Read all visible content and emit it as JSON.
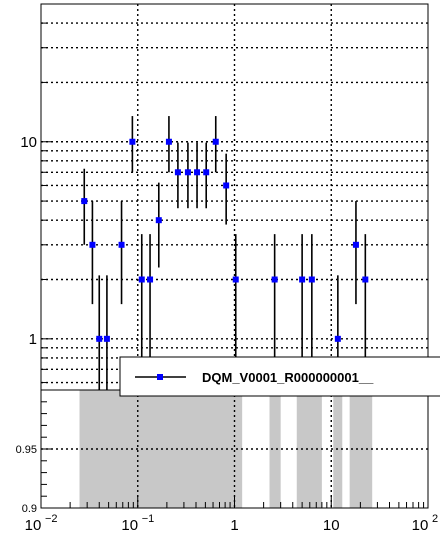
{
  "chart_data": [
    {
      "type": "scatter",
      "title": "",
      "xlabel": "",
      "ylabel": "",
      "x_scale": "log",
      "y_scale": "log",
      "xlim": [
        0.01,
        100
      ],
      "ylim": [
        0.55,
        50
      ],
      "grid": true,
      "x_ticks": [
        {
          "value": 0.01,
          "base": "10",
          "exp": "−2"
        },
        {
          "value": 0.1,
          "base": "10",
          "exp": "−1"
        },
        {
          "value": 1,
          "label": "1"
        },
        {
          "value": 10,
          "label": "10"
        },
        {
          "value": 100,
          "base": "10",
          "exp": "2"
        }
      ],
      "y_ticks": [
        {
          "value": 1,
          "label": "1"
        },
        {
          "value": 10,
          "label": "10"
        }
      ],
      "legend": {
        "position": "bottom-right",
        "entries": [
          "DQM_V0001_R000000001__"
        ]
      },
      "series": [
        {
          "name": "DQM_V0001_R000000001__",
          "color": "#0000ff",
          "points": [
            {
              "x": 0.028,
              "y": 5,
              "low": 3.0,
              "high": 7.3
            },
            {
              "x": 0.034,
              "y": 3,
              "low": 1.5,
              "high": 5.0
            },
            {
              "x": 0.04,
              "y": 1,
              "low": 0.3,
              "high": 2.1
            },
            {
              "x": 0.048,
              "y": 1,
              "low": 0.3,
              "high": 2.1
            },
            {
              "x": 0.068,
              "y": 3,
              "low": 1.5,
              "high": 5.0
            },
            {
              "x": 0.088,
              "y": 10,
              "low": 7.0,
              "high": 13.5
            },
            {
              "x": 0.11,
              "y": 2,
              "low": 0.7,
              "high": 3.4
            },
            {
              "x": 0.134,
              "y": 2,
              "low": 0.7,
              "high": 3.4
            },
            {
              "x": 0.165,
              "y": 4,
              "low": 2.3,
              "high": 6.2
            },
            {
              "x": 0.21,
              "y": 10,
              "low": 7.0,
              "high": 13.5
            },
            {
              "x": 0.26,
              "y": 7,
              "low": 4.6,
              "high": 9.9
            },
            {
              "x": 0.33,
              "y": 7,
              "low": 4.6,
              "high": 9.9
            },
            {
              "x": 0.41,
              "y": 7,
              "low": 4.6,
              "high": 9.9
            },
            {
              "x": 0.51,
              "y": 7,
              "low": 4.6,
              "high": 9.9
            },
            {
              "x": 0.64,
              "y": 10,
              "low": 7.0,
              "high": 13.5
            },
            {
              "x": 0.82,
              "y": 6,
              "low": 3.8,
              "high": 8.7
            },
            {
              "x": 1.03,
              "y": 2,
              "low": 0.7,
              "high": 3.4
            },
            {
              "x": 2.6,
              "y": 2,
              "low": 0.7,
              "high": 3.4
            },
            {
              "x": 5.0,
              "y": 2,
              "low": 0.7,
              "high": 3.4
            },
            {
              "x": 6.3,
              "y": 2,
              "low": 0.7,
              "high": 3.4
            },
            {
              "x": 11.7,
              "y": 1,
              "low": 0.3,
              "high": 2.1
            },
            {
              "x": 18.0,
              "y": 3,
              "low": 1.5,
              "high": 5.0
            },
            {
              "x": 22.5,
              "y": 2,
              "low": 0.7,
              "high": 3.4
            }
          ]
        }
      ]
    },
    {
      "type": "area",
      "title": "",
      "xlabel": "",
      "ylabel": "",
      "x_scale": "log",
      "xlim": [
        0.01,
        100
      ],
      "ylim": [
        0.9,
        1.0
      ],
      "grid": true,
      "y_ticks": [
        {
          "value": 0.9,
          "label": "0.9"
        },
        {
          "value": 0.95,
          "label": "0.95"
        }
      ],
      "bands": [
        {
          "x0": 0.025,
          "x1": 1.2,
          "y": 1
        },
        {
          "x0": 2.3,
          "x1": 3.0,
          "y": 1
        },
        {
          "x0": 4.4,
          "x1": 8.0,
          "y": 1
        },
        {
          "x0": 10.5,
          "x1": 13.0,
          "y": 1
        },
        {
          "x0": 15.5,
          "x1": 26.5,
          "y": 1
        }
      ],
      "band_color": "#c8c8c8"
    }
  ]
}
